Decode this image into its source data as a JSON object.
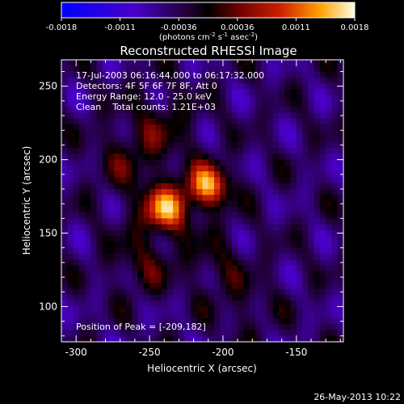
{
  "chart_data": {
    "type": "heatmap",
    "title": "Reconstructed RHESSI Image",
    "xlabel": "Heliocentric X (arcsec)",
    "ylabel": "Heliocentric Y (arcsec)",
    "xlim": [
      -310,
      -118
    ],
    "ylim": [
      76,
      268
    ],
    "x_ticks": [
      -300,
      -250,
      -200,
      -150
    ],
    "y_ticks": [
      100,
      150,
      200,
      250
    ],
    "colorbar": {
      "min": -0.0018,
      "max": 0.0018,
      "ticks": [
        "-0.0018",
        "-0.0011",
        "-0.00036",
        "0.00036",
        "0.0011",
        "0.0018"
      ],
      "unit_label": "(photons cm",
      "unit_exp1": "-2",
      "unit_mid": " s",
      "unit_exp2": "-1",
      "unit_end": " asec",
      "unit_exp3": "-2",
      "unit_close": ")"
    },
    "info_lines": [
      "17-Jul-2003 06:16:44.000 to 06:17:32.000",
      "Detectors: 4F 5F 6F 7F 8F, Att 0",
      "Energy Range: 12.0 - 25.0 keV",
      "Clean    Total counts: 1.21E+03"
    ],
    "peak_label": "Position of Peak = [-209,182]",
    "sources": [
      {
        "x": -239,
        "y": 166,
        "amplitude": 0.0017,
        "sigma": 11
      },
      {
        "x": -210,
        "y": 182,
        "amplitude": 0.0018,
        "sigma": 10
      },
      {
        "x": -262,
        "y": 200,
        "amplitude": 0.00045,
        "sigma": 18
      },
      {
        "x": -255,
        "y": 130,
        "amplitude": 0.0005,
        "sigma": 15
      },
      {
        "x": -205,
        "y": 130,
        "amplitude": 0.0004,
        "sigma": 14
      },
      {
        "x": -240,
        "y": 225,
        "amplitude": 0.0004,
        "sigma": 16
      },
      {
        "x": -185,
        "y": 100,
        "amplitude": 0.0003,
        "sigma": 14
      }
    ]
  },
  "footer": {
    "date": "26-May-2013 10:22"
  }
}
